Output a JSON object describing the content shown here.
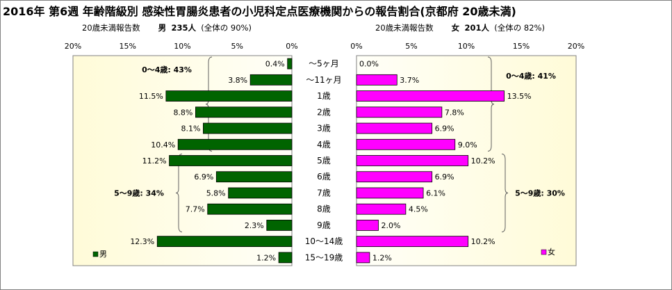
{
  "title": "2016年 第6週 年齢階級別 感染性胃腸炎患者の小児科定点医療機関からの報告割合(京都府 20歳未満)",
  "left_header": {
    "label": "20歳未満報告数",
    "sex": "男",
    "count": "235人",
    "share": "(全体の 90%)"
  },
  "right_header": {
    "label": "20歳未満報告数",
    "sex": "女",
    "count": "201人",
    "share": "(全体の 82%)"
  },
  "colors": {
    "male": "#006400",
    "female": "#ff00ff",
    "plot_bg_start": "#fffbd8",
    "plot_bg_end": "#fffff8"
  },
  "chart_data": [
    {
      "type": "bar",
      "orientation": "horizontal",
      "direction": "reversed",
      "series": [
        {
          "name": "男",
          "values": [
            0.4,
            3.8,
            11.5,
            8.8,
            8.1,
            10.4,
            11.2,
            6.9,
            5.8,
            7.7,
            2.3,
            12.3,
            1.2
          ]
        }
      ],
      "value_labels": [
        "0.4%",
        "3.8%",
        "11.5%",
        "8.8%",
        "8.1%",
        "10.4%",
        "11.2%",
        "6.9%",
        "5.8%",
        "7.7%",
        "2.3%",
        "12.3%",
        "1.2%"
      ],
      "xlim": [
        0,
        20
      ],
      "ticks": [
        "20%",
        "15%",
        "10%",
        "5%",
        "0%"
      ],
      "legend": "男",
      "legend_position": "bottom-left",
      "annotations": [
        {
          "text": "0～4歳: 43%",
          "from": 0,
          "to": 5
        },
        {
          "text": "5～9歳: 34%",
          "from": 6,
          "to": 10
        }
      ]
    },
    {
      "type": "bar",
      "orientation": "horizontal",
      "series": [
        {
          "name": "女",
          "values": [
            0.0,
            3.7,
            13.5,
            7.8,
            6.9,
            9.0,
            10.2,
            6.9,
            6.1,
            4.5,
            2.0,
            10.2,
            1.2
          ]
        }
      ],
      "value_labels": [
        "0.0%",
        "3.7%",
        "13.5%",
        "7.8%",
        "6.9%",
        "9.0%",
        "10.2%",
        "6.9%",
        "6.1%",
        "4.5%",
        "2.0%",
        "10.2%",
        "1.2%"
      ],
      "xlim": [
        0,
        20
      ],
      "ticks": [
        "0%",
        "5%",
        "10%",
        "15%",
        "20%"
      ],
      "legend": "女",
      "legend_position": "bottom-right",
      "annotations": [
        {
          "text": "0～4歳: 41%",
          "from": 0,
          "to": 5
        },
        {
          "text": "5～9歳: 30%",
          "from": 6,
          "to": 10
        }
      ]
    }
  ],
  "categories": [
    "～5ヶ月",
    "～11ヶ月",
    "1歳",
    "2歳",
    "3歳",
    "4歳",
    "5歳",
    "6歳",
    "7歳",
    "8歳",
    "9歳",
    "10～14歳",
    "15～19歳"
  ]
}
